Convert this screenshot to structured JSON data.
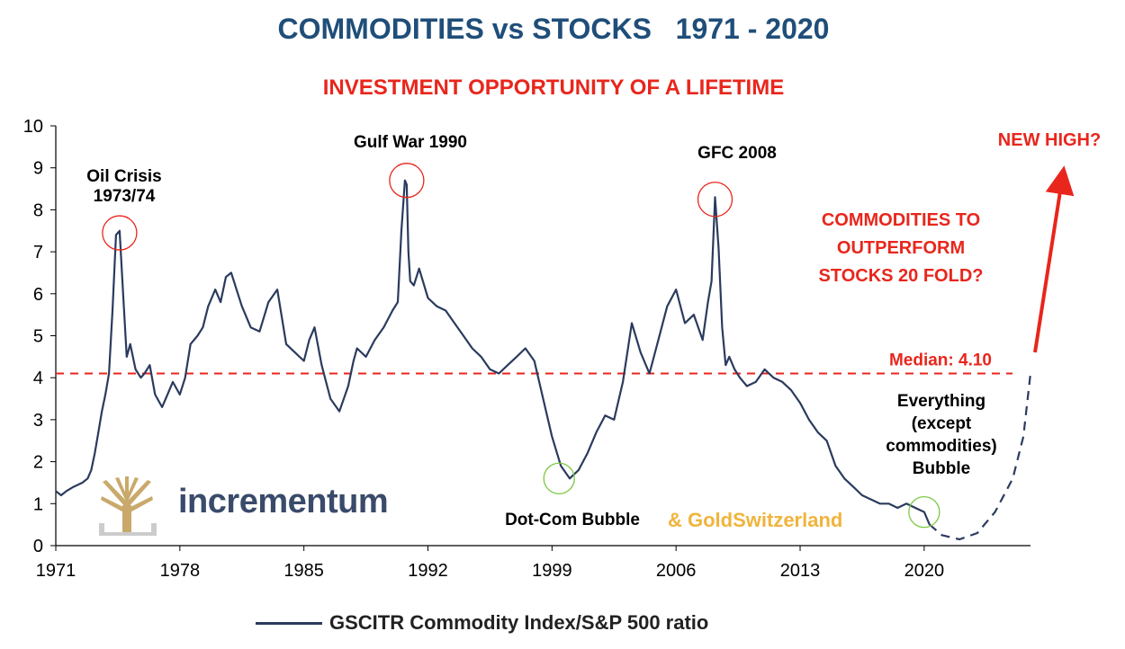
{
  "title": "COMMODITIES vs STOCKS   1971 - 2020",
  "subtitle": "INVESTMENT OPPORTUNITY OF A LIFETIME",
  "colors": {
    "title": "#1f4e79",
    "accent": "#e8261c",
    "series": "#2b3b5e",
    "gold": "#f0b43c",
    "logo": "#3a4a6b",
    "green": "#7ac943"
  },
  "logo": {
    "name": "incrementum",
    "partner": "& GoldSwitzerland"
  },
  "chart_data": {
    "type": "line",
    "xlim": [
      1971,
      2026
    ],
    "ylim": [
      0,
      10
    ],
    "x_ticks": [
      "1971",
      "1978",
      "1985",
      "1992",
      "1999",
      "2006",
      "2013",
      "2020"
    ],
    "y_ticks": [
      "0",
      "1",
      "2",
      "3",
      "4",
      "5",
      "6",
      "7",
      "8",
      "9",
      "10"
    ],
    "grid": false,
    "legend_position": "bottom-center",
    "series": [
      {
        "name": "GSCITR Commodity Index/S&P 500 ratio",
        "x": [
          1971,
          1971.3,
          1971.6,
          1972,
          1972.5,
          1972.8,
          1973,
          1973.2,
          1973.4,
          1973.6,
          1973.8,
          1974,
          1974.2,
          1974.4,
          1974.6,
          1974.8,
          1975,
          1975.2,
          1975.5,
          1975.8,
          1976,
          1976.3,
          1976.6,
          1977,
          1977.3,
          1977.6,
          1978,
          1978.3,
          1978.6,
          1979,
          1979.3,
          1979.6,
          1980,
          1980.3,
          1980.6,
          1980.9,
          1981.2,
          1981.5,
          1982,
          1982.5,
          1983,
          1983.5,
          1984,
          1984.5,
          1985,
          1985.3,
          1985.6,
          1986,
          1986.5,
          1987,
          1987.5,
          1987.8,
          1988,
          1988.5,
          1989,
          1989.5,
          1990,
          1990.3,
          1990.5,
          1990.7,
          1990.8,
          1990.9,
          1991,
          1991.2,
          1991.5,
          1992,
          1992.5,
          1993,
          1993.5,
          1994,
          1994.5,
          1995,
          1995.5,
          1996,
          1996.5,
          1997,
          1997.5,
          1998,
          1998.5,
          1999,
          1999.5,
          2000,
          2000.5,
          2001,
          2001.5,
          2002,
          2002.5,
          2003,
          2003.5,
          2004,
          2004.5,
          2005,
          2005.5,
          2006,
          2006.5,
          2007,
          2007.5,
          2007.8,
          2008,
          2008.2,
          2008.4,
          2008.6,
          2008.8,
          2009,
          2009.3,
          2009.6,
          2010,
          2010.5,
          2011,
          2011.5,
          2012,
          2012.5,
          2013,
          2013.5,
          2014,
          2014.5,
          2015,
          2015.5,
          2016,
          2016.5,
          2017,
          2017.5,
          2018,
          2018.5,
          2019,
          2019.5,
          2020,
          2020.3
        ],
        "values": [
          1.3,
          1.2,
          1.3,
          1.4,
          1.5,
          1.6,
          1.8,
          2.2,
          2.7,
          3.2,
          3.6,
          4.1,
          5.6,
          7.4,
          7.5,
          6.0,
          4.5,
          4.8,
          4.2,
          4.0,
          4.1,
          4.3,
          3.6,
          3.3,
          3.6,
          3.9,
          3.6,
          4.0,
          4.8,
          5.0,
          5.2,
          5.7,
          6.1,
          5.8,
          6.4,
          6.5,
          6.1,
          5.7,
          5.2,
          5.1,
          5.8,
          6.1,
          4.8,
          4.6,
          4.4,
          4.9,
          5.2,
          4.3,
          3.5,
          3.2,
          3.8,
          4.4,
          4.7,
          4.5,
          4.9,
          5.2,
          5.6,
          5.8,
          7.5,
          8.7,
          8.6,
          7.0,
          6.3,
          6.2,
          6.6,
          5.9,
          5.7,
          5.6,
          5.3,
          5.0,
          4.7,
          4.5,
          4.2,
          4.1,
          4.3,
          4.5,
          4.7,
          4.4,
          3.5,
          2.6,
          1.9,
          1.6,
          1.8,
          2.2,
          2.7,
          3.1,
          3.0,
          3.9,
          5.3,
          4.6,
          4.1,
          4.9,
          5.7,
          6.1,
          5.3,
          5.5,
          4.9,
          5.8,
          6.3,
          8.3,
          7.1,
          5.2,
          4.3,
          4.5,
          4.2,
          4.0,
          3.8,
          3.9,
          4.2,
          4.0,
          3.9,
          3.7,
          3.4,
          3.0,
          2.7,
          2.5,
          1.9,
          1.6,
          1.4,
          1.2,
          1.1,
          1.0,
          1.0,
          0.9,
          1.0,
          0.9,
          0.8,
          0.5
        ]
      },
      {
        "name": "",
        "style": "dashed",
        "x": [
          2020.3,
          2021,
          2022,
          2023,
          2024,
          2025,
          2025.6,
          2026
        ],
        "values": [
          0.5,
          0.25,
          0.15,
          0.3,
          0.8,
          1.6,
          2.6,
          4.1
        ]
      }
    ],
    "median": {
      "label": "Median: 4.10",
      "value": 4.1
    },
    "annotations": [
      {
        "text": [
          "Oil Crisis",
          "1973/74"
        ],
        "x": 1974.6,
        "y": 7.45,
        "marker": "red-circle"
      },
      {
        "text": [
          "Gulf War 1990"
        ],
        "x": 1990.8,
        "y": 8.7,
        "marker": "red-circle"
      },
      {
        "text": [
          "GFC 2008"
        ],
        "x": 2008.2,
        "y": 8.25,
        "marker": "red-circle"
      },
      {
        "text": [
          "Dot-Com Bubble"
        ],
        "x": 1999.4,
        "y": 1.6,
        "marker": "green-circle"
      },
      {
        "text": [
          "Everything",
          "(except",
          "commodities)",
          "Bubble"
        ],
        "x": 2020.0,
        "y": 0.8,
        "marker": "green-circle"
      }
    ],
    "callouts": {
      "outperform": [
        "COMMODITIES TO",
        "OUTPERFORM",
        "STOCKS 20 FOLD?"
      ],
      "new_high": "NEW HIGH?"
    }
  }
}
